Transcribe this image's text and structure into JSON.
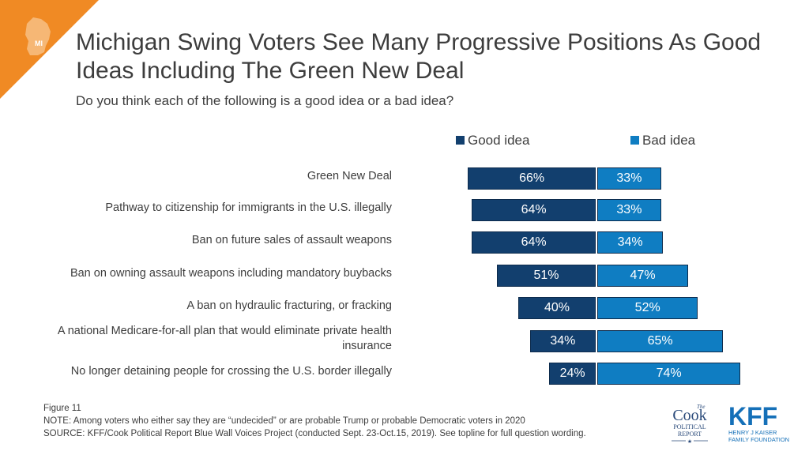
{
  "header": {
    "state_badge": "MI",
    "title": "Michigan Swing Voters See Many Progressive Positions As Good Ideas Including The Green New Deal",
    "subtitle": "Do you think each of the following is a good idea or a bad idea?"
  },
  "colors": {
    "good": "#123f6e",
    "bad": "#0f7dc2",
    "accent_orange": "#f08a24"
  },
  "chart_data": {
    "type": "bar",
    "orientation": "horizontal-diverging",
    "categories": [
      "Green New Deal",
      "Pathway to citizenship for immigrants in the U.S. illegally",
      "Ban on future sales of assault weapons",
      "Ban on owning assault weapons including mandatory buybacks",
      "A ban on hydraulic fracturing, or fracking",
      "A national Medicare-for-all plan that would eliminate private health insurance",
      "No longer detaining people for crossing the U.S. border illegally"
    ],
    "series": [
      {
        "name": "Good idea",
        "values": [
          66,
          64,
          64,
          51,
          40,
          34,
          24
        ],
        "labels": [
          "66%",
          "64%",
          "64%",
          "51%",
          "40%",
          "34%",
          "24%"
        ]
      },
      {
        "name": "Bad idea",
        "values": [
          33,
          33,
          34,
          47,
          52,
          65,
          74
        ],
        "labels": [
          "33%",
          "33%",
          "34%",
          "47%",
          "52%",
          "65%",
          "74%"
        ]
      }
    ],
    "legend_position": "top",
    "grid": false
  },
  "footer": {
    "figure": "Figure 11",
    "note": "NOTE: Among voters who either say they are “undecided” or are probable Trump  or probable Democratic voters in 2020",
    "source": "SOURCE: KFF/Cook Political Report Blue Wall Voices Project (conducted Sept. 23-Oct.15, 2019). See topline for full question wording."
  },
  "logos": {
    "cook": {
      "the": "The",
      "name": "Cook",
      "line1": "POLITICAL",
      "line2": "REPORT"
    },
    "kff": {
      "name": "KFF",
      "line1": "HENRY J KAISER",
      "line2": "FAMILY FOUNDATION"
    }
  }
}
